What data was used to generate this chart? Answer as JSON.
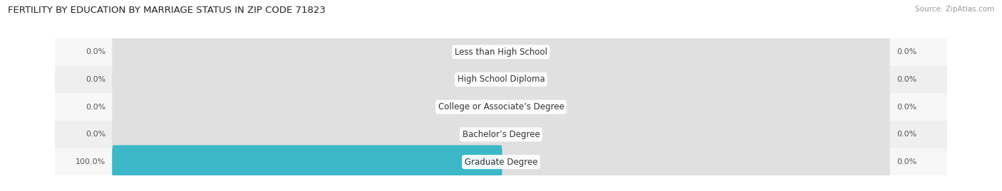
{
  "title": "FERTILITY BY EDUCATION BY MARRIAGE STATUS IN ZIP CODE 71823",
  "source": "Source: ZipAtlas.com",
  "categories": [
    "Less than High School",
    "High School Diploma",
    "College or Associate’s Degree",
    "Bachelor’s Degree",
    "Graduate Degree"
  ],
  "married_values": [
    0.0,
    0.0,
    0.0,
    0.0,
    100.0
  ],
  "unmarried_values": [
    0.0,
    0.0,
    0.0,
    0.0,
    0.0
  ],
  "married_color": "#3cb8c8",
  "unmarried_color": "#f4a8be",
  "bar_bg_color": "#e0e0e0",
  "title_fontsize": 9.5,
  "label_fontsize": 8.5,
  "tick_fontsize": 8,
  "source_fontsize": 7.5,
  "background_color": "#ffffff",
  "max_value": 100.0,
  "row_colors": [
    "#f7f7f7",
    "#efefef",
    "#f7f7f7",
    "#efefef",
    "#f7f7f7"
  ]
}
